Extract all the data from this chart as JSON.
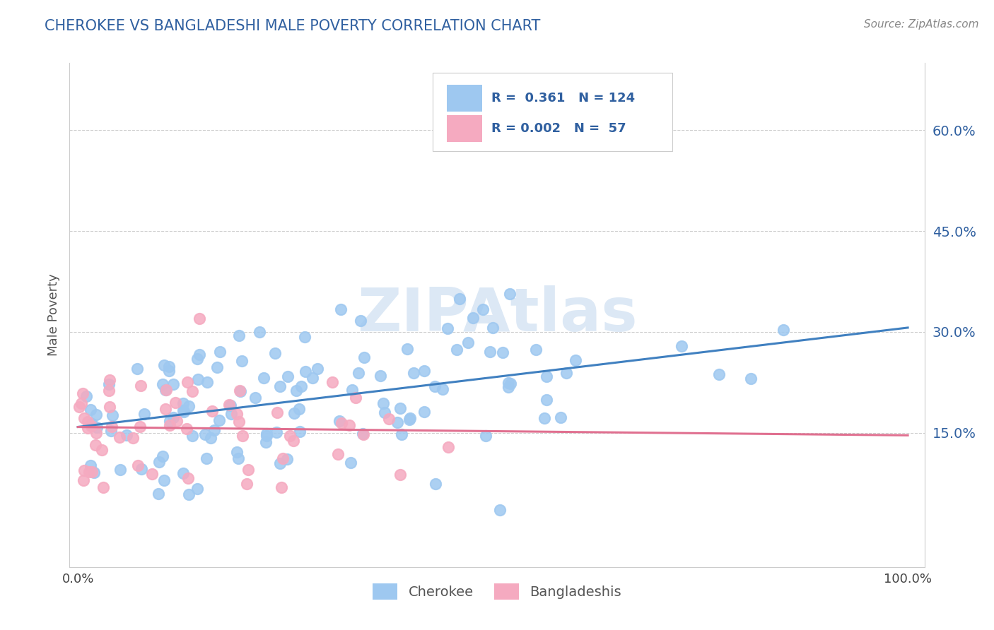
{
  "title": "CHEROKEE VS BANGLADESHI MALE POVERTY CORRELATION CHART",
  "source": "Source: ZipAtlas.com",
  "ylabel": "Male Poverty",
  "ytick_labels": [
    "15.0%",
    "30.0%",
    "45.0%",
    "60.0%"
  ],
  "ytick_values": [
    0.15,
    0.3,
    0.45,
    0.6
  ],
  "xlim": [
    -0.01,
    1.02
  ],
  "ylim": [
    -0.05,
    0.7
  ],
  "cherokee_R": "0.361",
  "cherokee_N": "124",
  "bangladeshi_R": "0.002",
  "bangladeshi_N": "57",
  "cherokee_color": "#9ec8f0",
  "bangladeshi_color": "#f5aac0",
  "cherokee_line_color": "#4080c0",
  "bangladeshi_line_color": "#e07090",
  "background_color": "#ffffff",
  "grid_color": "#cccccc",
  "title_color": "#3060a0",
  "ytick_color": "#3060a0",
  "source_color": "#888888",
  "watermark_color": "#dce8f5",
  "legend_edge_color": "#cccccc",
  "axis_color": "#cccccc"
}
